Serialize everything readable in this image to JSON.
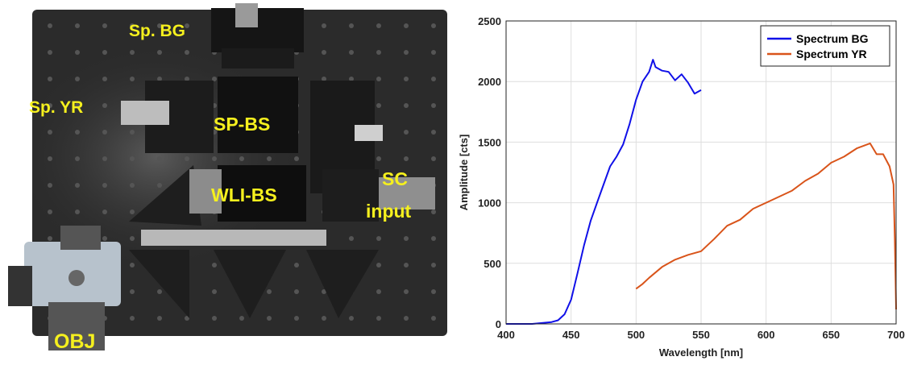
{
  "photo": {
    "labels": {
      "sp_bg": "Sp. BG",
      "sp_yr": "Sp. YR",
      "sp_bs": "SP-BS",
      "wli_bs": "WLI-BS",
      "sc": "SC",
      "input": "input",
      "obj": "OBJ"
    },
    "label_color": "#f5f01e",
    "board_color": "#2b2b2b"
  },
  "chart_data": {
    "type": "line",
    "xlabel": "Wavelength [nm]",
    "ylabel": "Amplitude [cts]",
    "xlim": [
      400,
      700
    ],
    "ylim": [
      0,
      2500
    ],
    "xticks": [
      400,
      450,
      500,
      550,
      600,
      650,
      700
    ],
    "yticks": [
      0,
      500,
      1000,
      1500,
      2000,
      2500
    ],
    "grid": true,
    "legend_position": "top-right",
    "series": [
      {
        "name": "Spectrum BG",
        "color": "#1010e8",
        "x": [
          400,
          420,
          435,
          440,
          445,
          450,
          455,
          460,
          465,
          470,
          475,
          480,
          485,
          490,
          495,
          500,
          505,
          510,
          513,
          515,
          520,
          525,
          530,
          535,
          540,
          545,
          550
        ],
        "y": [
          0,
          0,
          15,
          30,
          80,
          200,
          420,
          650,
          850,
          1000,
          1150,
          1300,
          1380,
          1480,
          1650,
          1850,
          2000,
          2080,
          2180,
          2120,
          2090,
          2080,
          2010,
          2060,
          1990,
          1900,
          1930
        ]
      },
      {
        "name": "Spectrum YR",
        "color": "#d9541a",
        "x": [
          500,
          505,
          510,
          520,
          530,
          540,
          550,
          560,
          570,
          580,
          590,
          600,
          610,
          620,
          630,
          640,
          650,
          660,
          670,
          675,
          680,
          685,
          690,
          695,
          698,
          699,
          700
        ],
        "y": [
          290,
          330,
          380,
          470,
          530,
          570,
          600,
          700,
          810,
          860,
          950,
          1000,
          1050,
          1100,
          1180,
          1240,
          1330,
          1380,
          1450,
          1470,
          1490,
          1400,
          1400,
          1300,
          1150,
          700,
          120
        ]
      }
    ]
  }
}
